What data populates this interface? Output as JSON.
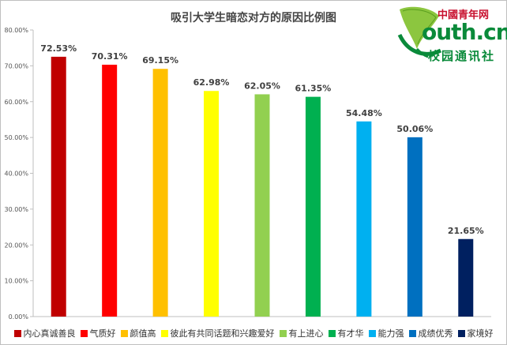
{
  "logo": {
    "top_text": "中國青年网",
    "mid_text": "outh.cn",
    "bottom_text": "校园通讯社"
  },
  "chart_data": {
    "type": "bar",
    "title": "吸引大学生暗恋对方的原因比例图",
    "xlabel": "",
    "ylabel": "",
    "ylim": [
      0,
      80
    ],
    "yticks": [
      "0.00%",
      "10.00%",
      "20.00%",
      "30.00%",
      "40.00%",
      "50.00%",
      "60.00%",
      "70.00%",
      "80.00%"
    ],
    "grid": false,
    "legend_position": "bottom",
    "categories": [
      "内心真诚善良",
      "气质好",
      "颜值高",
      "彼此有共同话题和兴趣爱好",
      "有上进心",
      "有才华",
      "能力强",
      "成绩优秀",
      "家境好"
    ],
    "values": [
      72.53,
      70.31,
      69.15,
      62.98,
      62.05,
      61.35,
      54.48,
      50.06,
      21.65
    ],
    "data_labels": [
      "72.53%",
      "70.31%",
      "69.15%",
      "62.98%",
      "62.05%",
      "61.35%",
      "54.48%",
      "50.06%",
      "21.65%"
    ],
    "colors": [
      "#c00000",
      "#ff0000",
      "#ffc000",
      "#ffff00",
      "#92d050",
      "#00b050",
      "#00b0f0",
      "#0070c0",
      "#002060"
    ]
  }
}
